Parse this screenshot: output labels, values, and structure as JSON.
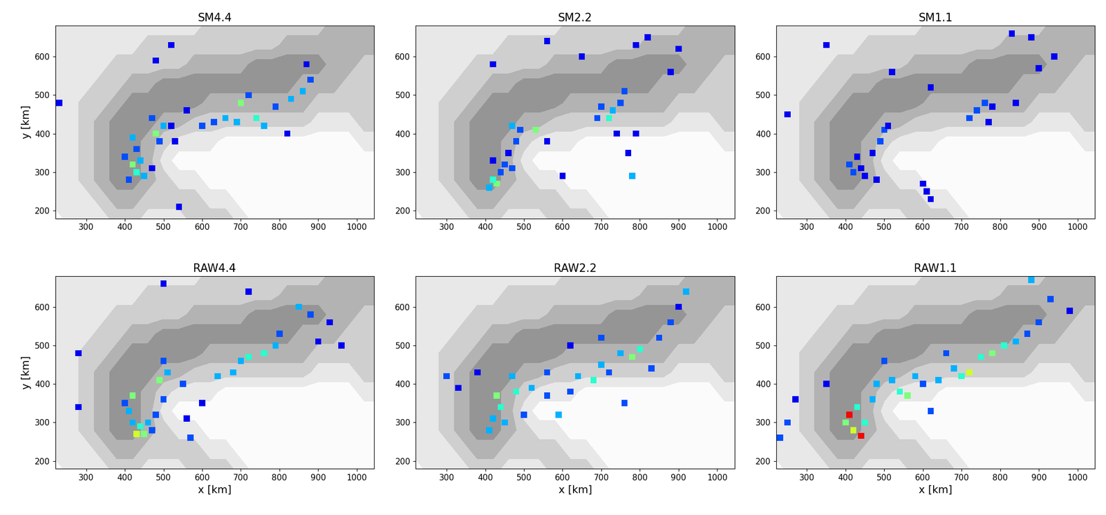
{
  "terrain": {
    "x": [
      220,
      260,
      300,
      340,
      380,
      420,
      460,
      500,
      540,
      580,
      620,
      660,
      700,
      740,
      780,
      820,
      860,
      900,
      940,
      980,
      1020,
      1060
    ],
    "y": [
      680,
      630,
      580,
      530,
      480,
      430,
      380,
      330,
      280,
      230,
      180
    ],
    "levels": [
      -0.5,
      0.5,
      1.5,
      2.5,
      3.5,
      4.5
    ],
    "values": [
      [
        1,
        1,
        1,
        1,
        1,
        1,
        1,
        1,
        1,
        1,
        2,
        2,
        2,
        2,
        2,
        2,
        2,
        2,
        3,
        3,
        3,
        3
      ],
      [
        1,
        1,
        1,
        1,
        1,
        1,
        2,
        2,
        2,
        2,
        2,
        2,
        2,
        2,
        2,
        3,
        3,
        3,
        3,
        3,
        3,
        3
      ],
      [
        1,
        1,
        1,
        1,
        2,
        2,
        2,
        2,
        2,
        3,
        3,
        3,
        3,
        4,
        4,
        4,
        4,
        4,
        3,
        3,
        2,
        2
      ],
      [
        1,
        1,
        1,
        2,
        2,
        3,
        3,
        4,
        4,
        4,
        4,
        4,
        4,
        4,
        4,
        4,
        3,
        3,
        3,
        2,
        2,
        2
      ],
      [
        1,
        1,
        2,
        2,
        3,
        4,
        4,
        4,
        4,
        4,
        3,
        3,
        3,
        3,
        3,
        3,
        3,
        2,
        2,
        2,
        2,
        2
      ],
      [
        1,
        1,
        2,
        3,
        4,
        4,
        4,
        3,
        3,
        2,
        2,
        2,
        2,
        2,
        2,
        2,
        2,
        1,
        1,
        1,
        2,
        2
      ],
      [
        1,
        1,
        2,
        3,
        4,
        4,
        3,
        2,
        1,
        1,
        1,
        0,
        0,
        0,
        0,
        0,
        0,
        0,
        0,
        0,
        1,
        1
      ],
      [
        1,
        1,
        2,
        3,
        4,
        4,
        3,
        1,
        0,
        0,
        0,
        0,
        0,
        0,
        0,
        0,
        0,
        0,
        0,
        0,
        0,
        0
      ],
      [
        1,
        1,
        2,
        3,
        4,
        4,
        3,
        2,
        1,
        1,
        0,
        0,
        0,
        0,
        0,
        0,
        0,
        0,
        0,
        0,
        0,
        0
      ],
      [
        1,
        1,
        1,
        2,
        3,
        3,
        2,
        2,
        2,
        2,
        1,
        1,
        0,
        0,
        0,
        0,
        0,
        0,
        0,
        0,
        0,
        0
      ],
      [
        0,
        1,
        1,
        1,
        2,
        2,
        1,
        1,
        1,
        2,
        2,
        2,
        1,
        0,
        0,
        0,
        0,
        0,
        0,
        0,
        0,
        0
      ]
    ]
  },
  "color_range": [
    0,
    1
  ],
  "chart_data": [
    {
      "type": "map",
      "title": "SM4.4",
      "ylabel": "y [km]",
      "xlim": [
        220,
        1045
      ],
      "ylim": [
        180,
        680
      ],
      "xticks": [
        300,
        400,
        500,
        600,
        700,
        800,
        900,
        1000
      ],
      "yticks": [
        200,
        300,
        400,
        500,
        600
      ],
      "cells": [
        [
          420,
          320,
          0.5
        ],
        [
          430,
          300,
          0.4
        ],
        [
          410,
          280,
          0.2
        ],
        [
          440,
          330,
          0.3
        ],
        [
          400,
          340,
          0.2
        ],
        [
          450,
          290,
          0.3
        ],
        [
          470,
          310,
          0.1
        ],
        [
          430,
          360,
          0.2
        ],
        [
          420,
          390,
          0.3
        ],
        [
          480,
          400,
          0.5
        ],
        [
          500,
          420,
          0.3
        ],
        [
          490,
          380,
          0.2
        ],
        [
          470,
          440,
          0.2
        ],
        [
          520,
          420,
          0.1
        ],
        [
          530,
          380,
          0.1
        ],
        [
          560,
          460,
          0.1
        ],
        [
          600,
          420,
          0.2
        ],
        [
          630,
          430,
          0.2
        ],
        [
          660,
          440,
          0.3
        ],
        [
          700,
          480,
          0.5
        ],
        [
          690,
          430,
          0.3
        ],
        [
          740,
          440,
          0.4
        ],
        [
          760,
          420,
          0.3
        ],
        [
          720,
          500,
          0.2
        ],
        [
          790,
          470,
          0.2
        ],
        [
          830,
          490,
          0.3
        ],
        [
          860,
          510,
          0.3
        ],
        [
          880,
          540,
          0.2
        ],
        [
          870,
          580,
          0.1
        ],
        [
          820,
          400,
          0.1
        ],
        [
          540,
          210,
          0.1
        ],
        [
          230,
          480,
          0.1
        ],
        [
          520,
          630,
          0.1
        ],
        [
          480,
          590,
          0.1
        ]
      ]
    },
    {
      "type": "map",
      "title": "SM2.2",
      "xlim": [
        220,
        1045
      ],
      "ylim": [
        180,
        680
      ],
      "xticks": [
        300,
        400,
        500,
        600,
        700,
        800,
        900,
        1000
      ],
      "yticks": [
        200,
        300,
        400,
        500,
        600
      ],
      "cells": [
        [
          430,
          270,
          0.5
        ],
        [
          420,
          280,
          0.4
        ],
        [
          410,
          260,
          0.3
        ],
        [
          440,
          300,
          0.2
        ],
        [
          450,
          320,
          0.2
        ],
        [
          420,
          330,
          0.1
        ],
        [
          470,
          310,
          0.2
        ],
        [
          460,
          350,
          0.1
        ],
        [
          480,
          380,
          0.2
        ],
        [
          470,
          420,
          0.3
        ],
        [
          490,
          410,
          0.2
        ],
        [
          530,
          410,
          0.5
        ],
        [
          560,
          380,
          0.1
        ],
        [
          700,
          470,
          0.2
        ],
        [
          690,
          440,
          0.2
        ],
        [
          720,
          440,
          0.4
        ],
        [
          730,
          460,
          0.3
        ],
        [
          750,
          480,
          0.2
        ],
        [
          760,
          510,
          0.2
        ],
        [
          740,
          400,
          0.1
        ],
        [
          790,
          400,
          0.1
        ],
        [
          780,
          290,
          0.3
        ],
        [
          770,
          350,
          0.1
        ],
        [
          880,
          560,
          0.1
        ],
        [
          900,
          620,
          0.1
        ],
        [
          820,
          650,
          0.1
        ],
        [
          790,
          630,
          0.1
        ],
        [
          650,
          600,
          0.1
        ],
        [
          560,
          640,
          0.1
        ],
        [
          420,
          580,
          0.1
        ],
        [
          600,
          290,
          0.1
        ]
      ]
    },
    {
      "type": "map",
      "title": "SM1.1",
      "xlim": [
        220,
        1045
      ],
      "ylim": [
        180,
        680
      ],
      "xticks": [
        300,
        400,
        500,
        600,
        700,
        800,
        900,
        1000
      ],
      "yticks": [
        200,
        300,
        400,
        500,
        600
      ],
      "cells": [
        [
          410,
          320,
          0.2
        ],
        [
          420,
          300,
          0.2
        ],
        [
          440,
          310,
          0.1
        ],
        [
          450,
          290,
          0.1
        ],
        [
          430,
          340,
          0.1
        ],
        [
          470,
          350,
          0.1
        ],
        [
          490,
          380,
          0.2
        ],
        [
          500,
          410,
          0.2
        ],
        [
          510,
          420,
          0.1
        ],
        [
          480,
          280,
          0.1
        ],
        [
          610,
          250,
          0.1
        ],
        [
          620,
          230,
          0.1
        ],
        [
          600,
          270,
          0.1
        ],
        [
          720,
          440,
          0.2
        ],
        [
          740,
          460,
          0.2
        ],
        [
          760,
          480,
          0.2
        ],
        [
          780,
          470,
          0.1
        ],
        [
          770,
          430,
          0.1
        ],
        [
          840,
          480,
          0.1
        ],
        [
          900,
          570,
          0.1
        ],
        [
          940,
          600,
          0.1
        ],
        [
          880,
          650,
          0.1
        ],
        [
          830,
          660,
          0.1
        ],
        [
          620,
          520,
          0.1
        ],
        [
          520,
          560,
          0.1
        ],
        [
          350,
          630,
          0.1
        ],
        [
          250,
          450,
          0.1
        ]
      ]
    },
    {
      "type": "map",
      "title": "RAW4.4",
      "xlabel": "x [km]",
      "ylabel": "y [km]",
      "xlim": [
        220,
        1045
      ],
      "ylim": [
        180,
        680
      ],
      "xticks": [
        300,
        400,
        500,
        600,
        700,
        800,
        900,
        1000
      ],
      "yticks": [
        200,
        300,
        400,
        500,
        600
      ],
      "cells": [
        [
          430,
          270,
          0.6
        ],
        [
          440,
          290,
          0.4
        ],
        [
          450,
          270,
          0.5
        ],
        [
          420,
          300,
          0.3
        ],
        [
          410,
          330,
          0.3
        ],
        [
          420,
          370,
          0.5
        ],
        [
          400,
          350,
          0.2
        ],
        [
          460,
          300,
          0.3
        ],
        [
          470,
          280,
          0.2
        ],
        [
          480,
          320,
          0.2
        ],
        [
          500,
          360,
          0.2
        ],
        [
          490,
          410,
          0.5
        ],
        [
          510,
          430,
          0.3
        ],
        [
          500,
          460,
          0.2
        ],
        [
          550,
          400,
          0.2
        ],
        [
          570,
          260,
          0.2
        ],
        [
          560,
          310,
          0.1
        ],
        [
          600,
          350,
          0.1
        ],
        [
          640,
          420,
          0.3
        ],
        [
          680,
          430,
          0.3
        ],
        [
          700,
          460,
          0.3
        ],
        [
          720,
          470,
          0.4
        ],
        [
          760,
          480,
          0.4
        ],
        [
          790,
          500,
          0.3
        ],
        [
          800,
          530,
          0.2
        ],
        [
          850,
          600,
          0.3
        ],
        [
          880,
          580,
          0.2
        ],
        [
          930,
          560,
          0.1
        ],
        [
          900,
          510,
          0.1
        ],
        [
          280,
          480,
          0.1
        ],
        [
          280,
          340,
          0.1
        ],
        [
          500,
          660,
          0.1
        ],
        [
          720,
          640,
          0.1
        ],
        [
          960,
          500,
          0.1
        ]
      ]
    },
    {
      "type": "map",
      "title": "RAW2.2",
      "xlabel": "x [km]",
      "xlim": [
        220,
        1045
      ],
      "ylim": [
        180,
        680
      ],
      "xticks": [
        300,
        400,
        500,
        600,
        700,
        800,
        900,
        1000
      ],
      "yticks": [
        200,
        300,
        400,
        500,
        600
      ],
      "cells": [
        [
          430,
          370,
          0.5
        ],
        [
          440,
          340,
          0.4
        ],
        [
          420,
          310,
          0.3
        ],
        [
          410,
          280,
          0.3
        ],
        [
          450,
          300,
          0.3
        ],
        [
          480,
          380,
          0.4
        ],
        [
          470,
          420,
          0.3
        ],
        [
          520,
          390,
          0.3
        ],
        [
          560,
          370,
          0.2
        ],
        [
          590,
          320,
          0.3
        ],
        [
          620,
          380,
          0.2
        ],
        [
          640,
          420,
          0.3
        ],
        [
          680,
          410,
          0.4
        ],
        [
          700,
          450,
          0.3
        ],
        [
          720,
          430,
          0.2
        ],
        [
          750,
          480,
          0.3
        ],
        [
          780,
          470,
          0.5
        ],
        [
          800,
          490,
          0.4
        ],
        [
          830,
          440,
          0.2
        ],
        [
          850,
          520,
          0.2
        ],
        [
          880,
          560,
          0.2
        ],
        [
          920,
          640,
          0.3
        ],
        [
          900,
          600,
          0.1
        ],
        [
          760,
          350,
          0.2
        ],
        [
          500,
          320,
          0.2
        ],
        [
          300,
          420,
          0.2
        ],
        [
          330,
          390,
          0.1
        ],
        [
          620,
          500,
          0.1
        ],
        [
          700,
          520,
          0.2
        ],
        [
          560,
          430,
          0.2
        ],
        [
          380,
          430,
          0.1
        ]
      ]
    },
    {
      "type": "map",
      "title": "RAW1.1",
      "xlabel": "x [km]",
      "xlim": [
        220,
        1045
      ],
      "ylim": [
        180,
        680
      ],
      "xticks": [
        300,
        400,
        500,
        600,
        700,
        800,
        900,
        1000
      ],
      "yticks": [
        200,
        300,
        400,
        500,
        600
      ],
      "cells": [
        [
          410,
          320,
          0.9
        ],
        [
          440,
          265,
          0.9
        ],
        [
          420,
          280,
          0.6
        ],
        [
          400,
          300,
          0.5
        ],
        [
          450,
          300,
          0.4
        ],
        [
          430,
          340,
          0.4
        ],
        [
          470,
          360,
          0.3
        ],
        [
          480,
          400,
          0.3
        ],
        [
          520,
          410,
          0.3
        ],
        [
          540,
          380,
          0.4
        ],
        [
          560,
          370,
          0.5
        ],
        [
          580,
          420,
          0.3
        ],
        [
          600,
          400,
          0.2
        ],
        [
          640,
          410,
          0.3
        ],
        [
          680,
          440,
          0.3
        ],
        [
          700,
          420,
          0.4
        ],
        [
          720,
          430,
          0.6
        ],
        [
          750,
          470,
          0.4
        ],
        [
          780,
          480,
          0.5
        ],
        [
          810,
          500,
          0.4
        ],
        [
          840,
          510,
          0.3
        ],
        [
          870,
          530,
          0.2
        ],
        [
          900,
          560,
          0.2
        ],
        [
          930,
          620,
          0.2
        ],
        [
          880,
          670,
          0.3
        ],
        [
          230,
          260,
          0.2
        ],
        [
          250,
          300,
          0.2
        ],
        [
          270,
          360,
          0.1
        ],
        [
          620,
          330,
          0.2
        ],
        [
          350,
          400,
          0.1
        ],
        [
          500,
          460,
          0.2
        ],
        [
          660,
          480,
          0.2
        ],
        [
          980,
          590,
          0.1
        ]
      ]
    }
  ]
}
